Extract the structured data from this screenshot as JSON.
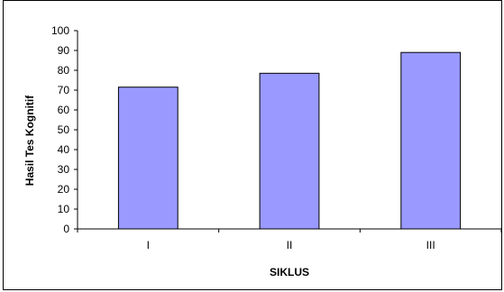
{
  "chart_data": {
    "type": "bar",
    "title": "",
    "xlabel": "SIKLUS",
    "ylabel": "Hasil Tes Kognitif",
    "categories": [
      "I",
      "II",
      "III"
    ],
    "values": [
      71.5,
      78.5,
      89
    ],
    "ylim": [
      0,
      100
    ],
    "yticks": [
      "0",
      "10",
      "20",
      "30",
      "40",
      "50",
      "60",
      "70",
      "80",
      "90",
      "100"
    ],
    "grid": false,
    "legend": "none",
    "colors": {
      "bar_fill": "#9999ff",
      "bar_stroke": "#000000",
      "axis": "#000000",
      "background": "#ffffff"
    }
  }
}
